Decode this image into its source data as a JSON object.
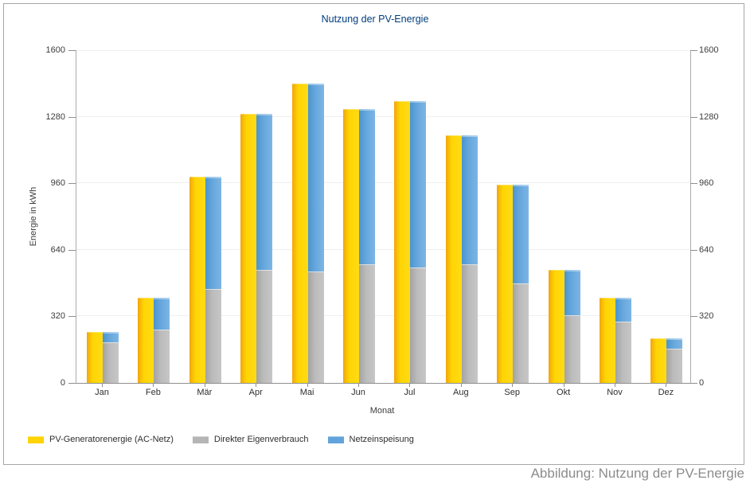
{
  "chart_data": {
    "type": "bar",
    "title": "Nutzung der PV-Energie",
    "xlabel": "Monat",
    "ylabel": "Energie in kWh",
    "ylim": [
      0,
      1600
    ],
    "yticks": [
      0,
      320,
      640,
      960,
      1280,
      1600
    ],
    "grid": true,
    "legend_position": "bottom-left",
    "categories": [
      "Jan",
      "Feb",
      "Mär",
      "Apr",
      "Mai",
      "Jun",
      "Jul",
      "Aug",
      "Sep",
      "Okt",
      "Nov",
      "Dez"
    ],
    "series": [
      {
        "name": "PV-Generatorenergie (AC-Netz)",
        "color": "#ffd403",
        "stacked": false,
        "values": [
          245,
          410,
          990,
          1295,
          1440,
          1315,
          1355,
          1190,
          955,
          545,
          410,
          215
        ]
      },
      {
        "name": "Direkter Eigenverbrauch",
        "color": "#b5b5b5",
        "stacked": true,
        "values": [
          195,
          255,
          450,
          545,
          535,
          570,
          555,
          570,
          480,
          325,
          295,
          165
        ]
      },
      {
        "name": "Netzeinspeisung",
        "color": "#62a3dc",
        "stacked": true,
        "values": [
          50,
          155,
          540,
          750,
          905,
          745,
          800,
          620,
          475,
          220,
          115,
          50
        ]
      }
    ]
  },
  "caption": "Abbildung: Nutzung der PV-Energie",
  "colors": {
    "title_text": "#003d7d",
    "caption_text": "#8c8c8c",
    "axis_text": "#3c3c3c",
    "gridline": "#efefef",
    "axis_line": "#8f8f8f"
  }
}
